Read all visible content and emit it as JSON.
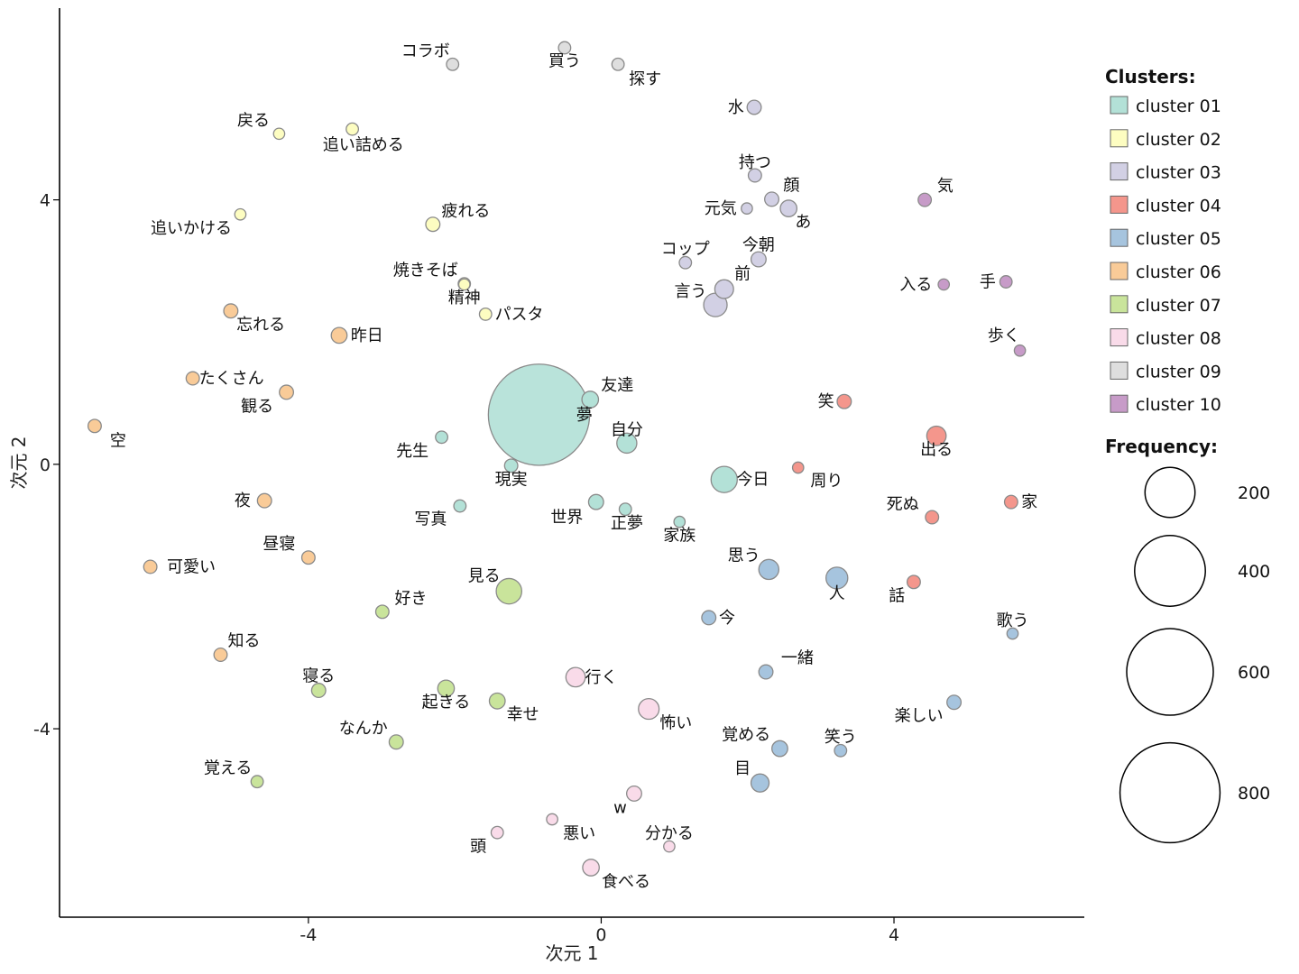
{
  "chart_data": {
    "type": "scatter",
    "title": "",
    "xlabel": "次元 1",
    "ylabel": "次元 2",
    "xlim": [
      -7.4,
      6.6
    ],
    "ylim": [
      -6.85,
      6.9
    ],
    "xticks": [
      -4,
      0,
      4
    ],
    "yticks": [
      -4,
      0,
      4
    ],
    "legend": {
      "placement": "right",
      "cluster_title": "Clusters:",
      "frequency_title": "Frequency:",
      "clusters": [
        {
          "id": "01",
          "name": "cluster 01",
          "color": "#b3e1d7"
        },
        {
          "id": "02",
          "name": "cluster 02",
          "color": "#fdfdc1"
        },
        {
          "id": "03",
          "name": "cluster 03",
          "color": "#d2d0e4"
        },
        {
          "id": "04",
          "name": "cluster 04",
          "color": "#f4968c"
        },
        {
          "id": "05",
          "name": "cluster 05",
          "color": "#a6c4de"
        },
        {
          "id": "06",
          "name": "cluster 06",
          "color": "#f9cb98"
        },
        {
          "id": "07",
          "name": "cluster 07",
          "color": "#c9e49b"
        },
        {
          "id": "08",
          "name": "cluster 08",
          "color": "#f9dbe9"
        },
        {
          "id": "09",
          "name": "cluster 09",
          "color": "#dedede"
        },
        {
          "id": "10",
          "name": "cluster 10",
          "color": "#c79bc8"
        }
      ],
      "frequency_sizes": [
        {
          "label": "200",
          "freq": 200
        },
        {
          "label": "400",
          "freq": 400
        },
        {
          "label": "600",
          "freq": 600
        },
        {
          "label": "800",
          "freq": 800
        }
      ]
    },
    "points": [
      {
        "word": "夢",
        "x": -0.85,
        "y": 0.75,
        "freq": 820,
        "cluster": "01",
        "lx": -0.23,
        "ly": 0.75
      },
      {
        "word": "友達",
        "x": -0.15,
        "y": 0.98,
        "freq": 22,
        "cluster": "01",
        "lx": 0.22,
        "ly": 1.2
      },
      {
        "word": "自分",
        "x": 0.35,
        "y": 0.32,
        "freq": 32,
        "cluster": "01",
        "lx": 0.35,
        "ly": 0.52
      },
      {
        "word": "先生",
        "x": -2.18,
        "y": 0.41,
        "freq": 12,
        "cluster": "01",
        "lx": -2.58,
        "ly": 0.2
      },
      {
        "word": "現実",
        "x": -1.23,
        "y": -0.02,
        "freq": 14,
        "cluster": "01",
        "lx": -1.23,
        "ly": -0.23
      },
      {
        "word": "写真",
        "x": -1.93,
        "y": -0.63,
        "freq": 12,
        "cluster": "01",
        "lx": -2.33,
        "ly": -0.83
      },
      {
        "word": "世界",
        "x": -0.07,
        "y": -0.57,
        "freq": 18,
        "cluster": "01",
        "lx": -0.47,
        "ly": -0.8
      },
      {
        "word": "正夢",
        "x": 0.33,
        "y": -0.68,
        "freq": 12,
        "cluster": "01",
        "lx": 0.35,
        "ly": -0.89
      },
      {
        "word": "家族",
        "x": 1.07,
        "y": -0.87,
        "freq": 10,
        "cluster": "01",
        "lx": 1.07,
        "ly": -1.07
      },
      {
        "word": "今日",
        "x": 1.68,
        "y": -0.23,
        "freq": 55,
        "cluster": "01",
        "lx": 2.07,
        "ly": -0.23
      },
      {
        "word": "追い詰める",
        "x": -3.4,
        "y": 5.07,
        "freq": 12,
        "cluster": "02",
        "lx": -3.25,
        "ly": 4.83
      },
      {
        "word": "戻る",
        "x": -4.4,
        "y": 5.0,
        "freq": 10,
        "cluster": "02",
        "lx": -4.75,
        "ly": 5.2
      },
      {
        "word": "追いかける",
        "x": -4.93,
        "y": 3.78,
        "freq": 10,
        "cluster": "02",
        "lx": -5.6,
        "ly": 3.57
      },
      {
        "word": "疲れる",
        "x": -2.3,
        "y": 3.63,
        "freq": 16,
        "cluster": "02",
        "lx": -1.85,
        "ly": 3.83
      },
      {
        "word": "焼きそば",
        "x": -1.87,
        "y": 2.73,
        "freq": 12,
        "cluster": "02",
        "lx": -2.4,
        "ly": 2.94
      },
      {
        "word": "精神",
        "x": -1.87,
        "y": 2.72,
        "freq": 10,
        "cluster": "02",
        "lx": -1.87,
        "ly": 2.52
      },
      {
        "word": "パスタ",
        "x": -1.58,
        "y": 2.27,
        "freq": 12,
        "cluster": "02",
        "lx": -1.12,
        "ly": 2.27
      },
      {
        "word": "水",
        "x": 2.09,
        "y": 5.4,
        "freq": 16,
        "cluster": "03",
        "lx": 1.84,
        "ly": 5.4
      },
      {
        "word": "持つ",
        "x": 2.1,
        "y": 4.37,
        "freq": 14,
        "cluster": "03",
        "lx": 2.1,
        "ly": 4.57
      },
      {
        "word": "顔",
        "x": 2.33,
        "y": 4.01,
        "freq": 16,
        "cluster": "03",
        "lx": 2.6,
        "ly": 4.22
      },
      {
        "word": "元気",
        "x": 1.99,
        "y": 3.87,
        "freq": 10,
        "cluster": "03",
        "lx": 1.63,
        "ly": 3.87
      },
      {
        "word": "あ",
        "x": 2.56,
        "y": 3.87,
        "freq": 22,
        "cluster": "03",
        "lx": 2.76,
        "ly": 3.67
      },
      {
        "word": "コップ",
        "x": 1.15,
        "y": 3.05,
        "freq": 12,
        "cluster": "03",
        "lx": 1.15,
        "ly": 3.26
      },
      {
        "word": "今朝",
        "x": 2.15,
        "y": 3.1,
        "freq": 18,
        "cluster": "03",
        "lx": 2.15,
        "ly": 3.32
      },
      {
        "word": "前",
        "x": 1.68,
        "y": 2.65,
        "freq": 28,
        "cluster": "03",
        "lx": 1.93,
        "ly": 2.88
      },
      {
        "word": "言う",
        "x": 1.56,
        "y": 2.41,
        "freq": 44,
        "cluster": "03",
        "lx": 1.22,
        "ly": 2.62
      },
      {
        "word": "笑",
        "x": 3.32,
        "y": 0.95,
        "freq": 16,
        "cluster": "04",
        "lx": 3.07,
        "ly": 0.95
      },
      {
        "word": "周り",
        "x": 2.69,
        "y": -0.05,
        "freq": 10,
        "cluster": "04",
        "lx": 3.08,
        "ly": -0.25
      },
      {
        "word": "出る",
        "x": 4.58,
        "y": 0.43,
        "freq": 30,
        "cluster": "04",
        "lx": 4.58,
        "ly": 0.22
      },
      {
        "word": "死ぬ",
        "x": 4.52,
        "y": -0.8,
        "freq": 14,
        "cluster": "04",
        "lx": 4.12,
        "ly": -0.6
      },
      {
        "word": "家",
        "x": 5.6,
        "y": -0.57,
        "freq": 14,
        "cluster": "04",
        "lx": 5.85,
        "ly": -0.57
      },
      {
        "word": "話",
        "x": 4.27,
        "y": -1.78,
        "freq": 14,
        "cluster": "04",
        "lx": 4.04,
        "ly": -1.99
      },
      {
        "word": "思う",
        "x": 2.29,
        "y": -1.59,
        "freq": 32,
        "cluster": "05",
        "lx": 1.95,
        "ly": -1.38
      },
      {
        "word": "人",
        "x": 3.22,
        "y": -1.72,
        "freq": 38,
        "cluster": "05",
        "lx": 3.22,
        "ly": -1.95
      },
      {
        "word": "今",
        "x": 1.47,
        "y": -2.32,
        "freq": 16,
        "cluster": "05",
        "lx": 1.72,
        "ly": -2.32
      },
      {
        "word": "歌う",
        "x": 5.62,
        "y": -2.56,
        "freq": 10,
        "cluster": "05",
        "lx": 5.62,
        "ly": -2.36
      },
      {
        "word": "一緒",
        "x": 2.25,
        "y": -3.14,
        "freq": 16,
        "cluster": "05",
        "lx": 2.68,
        "ly": -2.93
      },
      {
        "word": "楽しい",
        "x": 4.82,
        "y": -3.6,
        "freq": 16,
        "cluster": "05",
        "lx": 4.34,
        "ly": -3.8
      },
      {
        "word": "覚める",
        "x": 2.44,
        "y": -4.3,
        "freq": 20,
        "cluster": "05",
        "lx": 1.98,
        "ly": -4.09
      },
      {
        "word": "笑う",
        "x": 3.27,
        "y": -4.33,
        "freq": 12,
        "cluster": "05",
        "lx": 3.27,
        "ly": -4.12
      },
      {
        "word": "目",
        "x": 2.17,
        "y": -4.82,
        "freq": 26,
        "cluster": "05",
        "lx": 1.93,
        "ly": -4.6
      },
      {
        "word": "忘れる",
        "x": -5.06,
        "y": 2.32,
        "freq": 16,
        "cluster": "06",
        "lx": -4.65,
        "ly": 2.11
      },
      {
        "word": "昨日",
        "x": -3.58,
        "y": 1.95,
        "freq": 20,
        "cluster": "06",
        "lx": -3.2,
        "ly": 1.95
      },
      {
        "word": "たくさん",
        "x": -5.58,
        "y": 1.3,
        "freq": 14,
        "cluster": "06",
        "lx": -5.05,
        "ly": 1.3
      },
      {
        "word": "観る",
        "x": -4.3,
        "y": 1.09,
        "freq": 16,
        "cluster": "06",
        "lx": -4.7,
        "ly": 0.88
      },
      {
        "word": "空",
        "x": -6.92,
        "y": 0.58,
        "freq": 14,
        "cluster": "06",
        "lx": -6.6,
        "ly": 0.36
      },
      {
        "word": "夜",
        "x": -4.6,
        "y": -0.55,
        "freq": 16,
        "cluster": "06",
        "lx": -4.9,
        "ly": -0.55
      },
      {
        "word": "昼寝",
        "x": -4.0,
        "y": -1.41,
        "freq": 14,
        "cluster": "06",
        "lx": -4.4,
        "ly": -1.2
      },
      {
        "word": "可愛い",
        "x": -6.16,
        "y": -1.55,
        "freq": 14,
        "cluster": "06",
        "lx": -5.6,
        "ly": -1.55
      },
      {
        "word": "知る",
        "x": -5.2,
        "y": -2.88,
        "freq": 14,
        "cluster": "06",
        "lx": -4.88,
        "ly": -2.67
      },
      {
        "word": "見る",
        "x": -1.26,
        "y": -1.92,
        "freq": 52,
        "cluster": "07",
        "lx": -1.6,
        "ly": -1.69
      },
      {
        "word": "好き",
        "x": -2.99,
        "y": -2.23,
        "freq": 14,
        "cluster": "07",
        "lx": -2.6,
        "ly": -2.03
      },
      {
        "word": "寝る",
        "x": -3.86,
        "y": -3.42,
        "freq": 16,
        "cluster": "07",
        "lx": -3.86,
        "ly": -3.2
      },
      {
        "word": "起きる",
        "x": -2.12,
        "y": -3.39,
        "freq": 22,
        "cluster": "07",
        "lx": -2.12,
        "ly": -3.6
      },
      {
        "word": "幸せ",
        "x": -1.42,
        "y": -3.58,
        "freq": 20,
        "cluster": "07",
        "lx": -1.07,
        "ly": -3.78
      },
      {
        "word": "なんか",
        "x": -2.8,
        "y": -4.2,
        "freq": 16,
        "cluster": "07",
        "lx": -3.25,
        "ly": -3.99
      },
      {
        "word": "覚える",
        "x": -4.7,
        "y": -4.8,
        "freq": 12,
        "cluster": "07",
        "lx": -5.1,
        "ly": -4.59
      },
      {
        "word": "行く",
        "x": -0.35,
        "y": -3.22,
        "freq": 30,
        "cluster": "08",
        "lx": 0.0,
        "ly": -3.22
      },
      {
        "word": "怖い",
        "x": 0.65,
        "y": -3.7,
        "freq": 34,
        "cluster": "08",
        "lx": 1.02,
        "ly": -3.91
      },
      {
        "word": "w",
        "x": 0.45,
        "y": -4.98,
        "freq": 18,
        "cluster": "08",
        "lx": 0.26,
        "ly": -5.19
      },
      {
        "word": "悪い",
        "x": -0.67,
        "y": -5.37,
        "freq": 10,
        "cluster": "08",
        "lx": -0.3,
        "ly": -5.58
      },
      {
        "word": "頭",
        "x": -1.42,
        "y": -5.57,
        "freq": 12,
        "cluster": "08",
        "lx": -1.68,
        "ly": -5.78
      },
      {
        "word": "分かる",
        "x": 0.93,
        "y": -5.78,
        "freq": 10,
        "cluster": "08",
        "lx": 0.93,
        "ly": -5.58
      },
      {
        "word": "食べる",
        "x": -0.14,
        "y": -6.1,
        "freq": 22,
        "cluster": "08",
        "lx": 0.34,
        "ly": -6.31
      },
      {
        "word": "コラボ",
        "x": -2.03,
        "y": 6.05,
        "freq": 12,
        "cluster": "09",
        "lx": -2.4,
        "ly": 6.25
      },
      {
        "word": "買う",
        "x": -0.5,
        "y": 6.3,
        "freq": 12,
        "cluster": "09",
        "lx": -0.5,
        "ly": 6.1
      },
      {
        "word": "探す",
        "x": 0.23,
        "y": 6.05,
        "freq": 12,
        "cluster": "09",
        "lx": 0.6,
        "ly": 5.83
      },
      {
        "word": "気",
        "x": 4.42,
        "y": 4.0,
        "freq": 14,
        "cluster": "10",
        "lx": 4.7,
        "ly": 4.21
      },
      {
        "word": "入る",
        "x": 4.68,
        "y": 2.72,
        "freq": 10,
        "cluster": "10",
        "lx": 4.3,
        "ly": 2.72
      },
      {
        "word": "手",
        "x": 5.53,
        "y": 2.76,
        "freq": 12,
        "cluster": "10",
        "lx": 5.28,
        "ly": 2.76
      },
      {
        "word": "歩く",
        "x": 5.72,
        "y": 1.72,
        "freq": 10,
        "cluster": "10",
        "lx": 5.5,
        "ly": 1.95
      }
    ]
  }
}
